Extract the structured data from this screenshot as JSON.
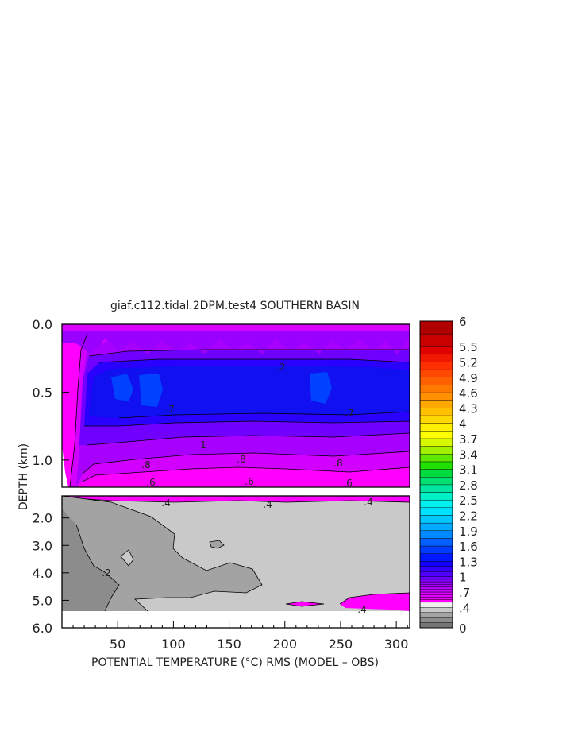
{
  "chart_data": {
    "type": "heatmap",
    "title": "giaf.c112.tidal.2DPM.test4 SOUTHERN BASIN",
    "xlabel": "POTENTIAL TEMPERATURE (°C) RMS (MODEL – OBS)",
    "ylabel": "DEPTH (km)",
    "xlim": [
      0,
      312
    ],
    "x_ticks": [
      "50",
      "100",
      "150",
      "200",
      "250",
      "300"
    ],
    "upper_panel": {
      "depth_range": [
        0.0,
        1.2
      ],
      "y_ticks": [
        "0.0",
        "0.5",
        "1.0"
      ],
      "contour_labels": [
        ".8",
        ".6",
        ".8",
        ".6",
        ".8",
        ".6",
        "1",
        ".7",
        ".2",
        ".7"
      ]
    },
    "lower_panel": {
      "depth_range": [
        1.2,
        6.0
      ],
      "y_ticks": [
        "2.0",
        "3.0",
        "4.0",
        "5.0",
        "6.0"
      ],
      "contour_labels": [
        ".4",
        ".4",
        ".4",
        ".2",
        ".4"
      ]
    },
    "colorbar": {
      "tick_labels": [
        "6",
        "5.5",
        "5.2",
        "4.9",
        "4.6",
        "4.3",
        "4",
        "3.7",
        "3.4",
        "3.1",
        "2.8",
        "2.5",
        "2.2",
        "1.9",
        "1.6",
        "1.3",
        "1",
        ".7",
        ".4",
        "0"
      ],
      "levels": [
        0,
        0.1,
        0.2,
        0.3,
        0.4,
        0.5,
        0.55,
        0.6,
        0.65,
        0.7,
        0.75,
        0.8,
        0.85,
        0.9,
        0.95,
        1.0,
        1.1,
        1.2,
        1.3,
        1.45,
        1.6,
        1.75,
        1.9,
        2.05,
        2.2,
        2.35,
        2.5,
        2.65,
        2.8,
        2.95,
        3.1,
        3.25,
        3.4,
        3.55,
        3.7,
        3.85,
        4.0,
        4.15,
        4.3,
        4.45,
        4.6,
        4.75,
        4.9,
        5.05,
        5.2,
        5.35,
        5.5,
        5.75,
        6.0
      ],
      "colors": [
        "#767676",
        "#8c8c8c",
        "#a3a3a3",
        "#c9c9c9",
        "#f0f0f0",
        "#ff00ff",
        "#f000ff",
        "#e400ff",
        "#d600ff",
        "#c800ff",
        "#ba00ff",
        "#a800ff",
        "#9600ff",
        "#8000ff",
        "#6a00ff",
        "#5000ff",
        "#3200ff",
        "#1400ff",
        "#0018ff",
        "#003cff",
        "#0060ff",
        "#0088ff",
        "#00aaff",
        "#00c8ff",
        "#00e0ff",
        "#00f0f0",
        "#00f0c8",
        "#00e6a0",
        "#00e070",
        "#00dc40",
        "#20e000",
        "#60e800",
        "#a0f000",
        "#d8f800",
        "#ffff00",
        "#fff000",
        "#ffd800",
        "#ffc000",
        "#ffa800",
        "#ff9000",
        "#ff7800",
        "#ff6000",
        "#ff4800",
        "#ff3000",
        "#f01800",
        "#e00000",
        "#c80000",
        "#b00000"
      ]
    }
  }
}
